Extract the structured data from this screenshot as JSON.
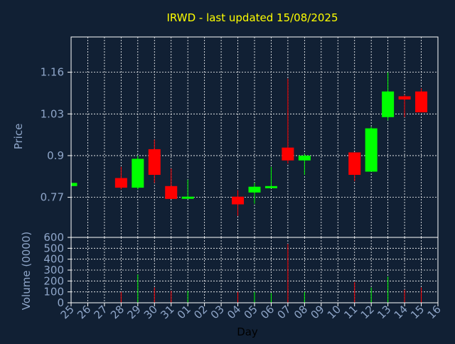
{
  "colors": {
    "background": "#112034",
    "axis_text": "#8fa6c9",
    "title": "#ffff00",
    "label_dark": "#000000",
    "grid": "#ffffff",
    "up": "#00ff00",
    "down": "#ff0000"
  },
  "chart_data": [
    {
      "type": "candlestick",
      "title": "IRWD - last updated 15/08/2025",
      "ylabel": "Price",
      "ylim": [
        0.645,
        1.27
      ],
      "yticks": [
        0.77,
        0.9,
        1.03,
        1.16
      ],
      "ytick_labels": [
        "0.77",
        "0.9",
        "1.03",
        "1.16"
      ],
      "grid": true,
      "categories": [
        "25",
        "26",
        "27",
        "28",
        "29",
        "30",
        "31",
        "01",
        "02",
        "03",
        "04",
        "05",
        "06",
        "07",
        "08",
        "09",
        "10",
        "11",
        "12",
        "13",
        "14",
        "15",
        "16"
      ],
      "candles": [
        {
          "day": "25",
          "open": 0.805,
          "close": 0.815,
          "high": 0.815,
          "low": 0.805
        },
        {
          "day": "28",
          "open": 0.83,
          "close": 0.8,
          "high": 0.865,
          "low": 0.795
        },
        {
          "day": "29",
          "open": 0.8,
          "close": 0.89,
          "high": 0.9,
          "low": 0.795
        },
        {
          "day": "30",
          "open": 0.92,
          "close": 0.84,
          "high": 0.95,
          "low": 0.815
        },
        {
          "day": "31",
          "open": 0.805,
          "close": 0.765,
          "high": 0.86,
          "low": 0.765
        },
        {
          "day": "01",
          "open": 0.768,
          "close": 0.772,
          "high": 0.825,
          "low": 0.765
        },
        {
          "day": "04",
          "open": 0.772,
          "close": 0.748,
          "high": 0.792,
          "low": 0.712
        },
        {
          "day": "05",
          "open": 0.785,
          "close": 0.803,
          "high": 0.815,
          "low": 0.75
        },
        {
          "day": "06",
          "open": 0.8,
          "close": 0.805,
          "high": 0.865,
          "low": 0.8
        },
        {
          "day": "07",
          "open": 0.925,
          "close": 0.885,
          "high": 1.14,
          "low": 0.875
        },
        {
          "day": "08",
          "open": 0.885,
          "close": 0.9,
          "high": 0.905,
          "low": 0.84
        },
        {
          "day": "11",
          "open": 0.91,
          "close": 0.84,
          "high": 0.91,
          "low": 0.82
        },
        {
          "day": "12",
          "open": 0.85,
          "close": 0.985,
          "high": 0.99,
          "low": 0.85
        },
        {
          "day": "13",
          "open": 1.02,
          "close": 1.1,
          "high": 1.16,
          "low": 1.01
        },
        {
          "day": "14",
          "open": 1.085,
          "close": 1.075,
          "high": 1.09,
          "low": 1.02
        },
        {
          "day": "15",
          "open": 1.1,
          "close": 1.035,
          "high": 1.11,
          "low": 1.035
        }
      ]
    },
    {
      "type": "bar",
      "ylabel": "Volume (0000)",
      "xlabel": "Day",
      "ylim": [
        0,
        600
      ],
      "yticks": [
        0,
        100,
        200,
        300,
        400,
        500,
        600
      ],
      "ytick_labels": [
        "0",
        "100",
        "200",
        "300",
        "400",
        "500",
        "600"
      ],
      "grid": true,
      "categories": [
        "25",
        "26",
        "27",
        "28",
        "29",
        "30",
        "31",
        "01",
        "02",
        "03",
        "04",
        "05",
        "06",
        "07",
        "08",
        "09",
        "10",
        "11",
        "12",
        "13",
        "14",
        "15",
        "16"
      ],
      "bars": [
        {
          "day": "28",
          "value": 100,
          "direction": "down"
        },
        {
          "day": "29",
          "value": 260,
          "direction": "up"
        },
        {
          "day": "30",
          "value": 140,
          "direction": "down"
        },
        {
          "day": "31",
          "value": 110,
          "direction": "down"
        },
        {
          "day": "01",
          "value": 110,
          "direction": "up"
        },
        {
          "day": "04",
          "value": 100,
          "direction": "down"
        },
        {
          "day": "05",
          "value": 100,
          "direction": "up"
        },
        {
          "day": "06",
          "value": 90,
          "direction": "up"
        },
        {
          "day": "07",
          "value": 540,
          "direction": "down"
        },
        {
          "day": "08",
          "value": 100,
          "direction": "up"
        },
        {
          "day": "11",
          "value": 190,
          "direction": "down"
        },
        {
          "day": "12",
          "value": 140,
          "direction": "up"
        },
        {
          "day": "13",
          "value": 240,
          "direction": "up"
        },
        {
          "day": "14",
          "value": 120,
          "direction": "down"
        },
        {
          "day": "15",
          "value": 140,
          "direction": "down"
        }
      ]
    }
  ]
}
